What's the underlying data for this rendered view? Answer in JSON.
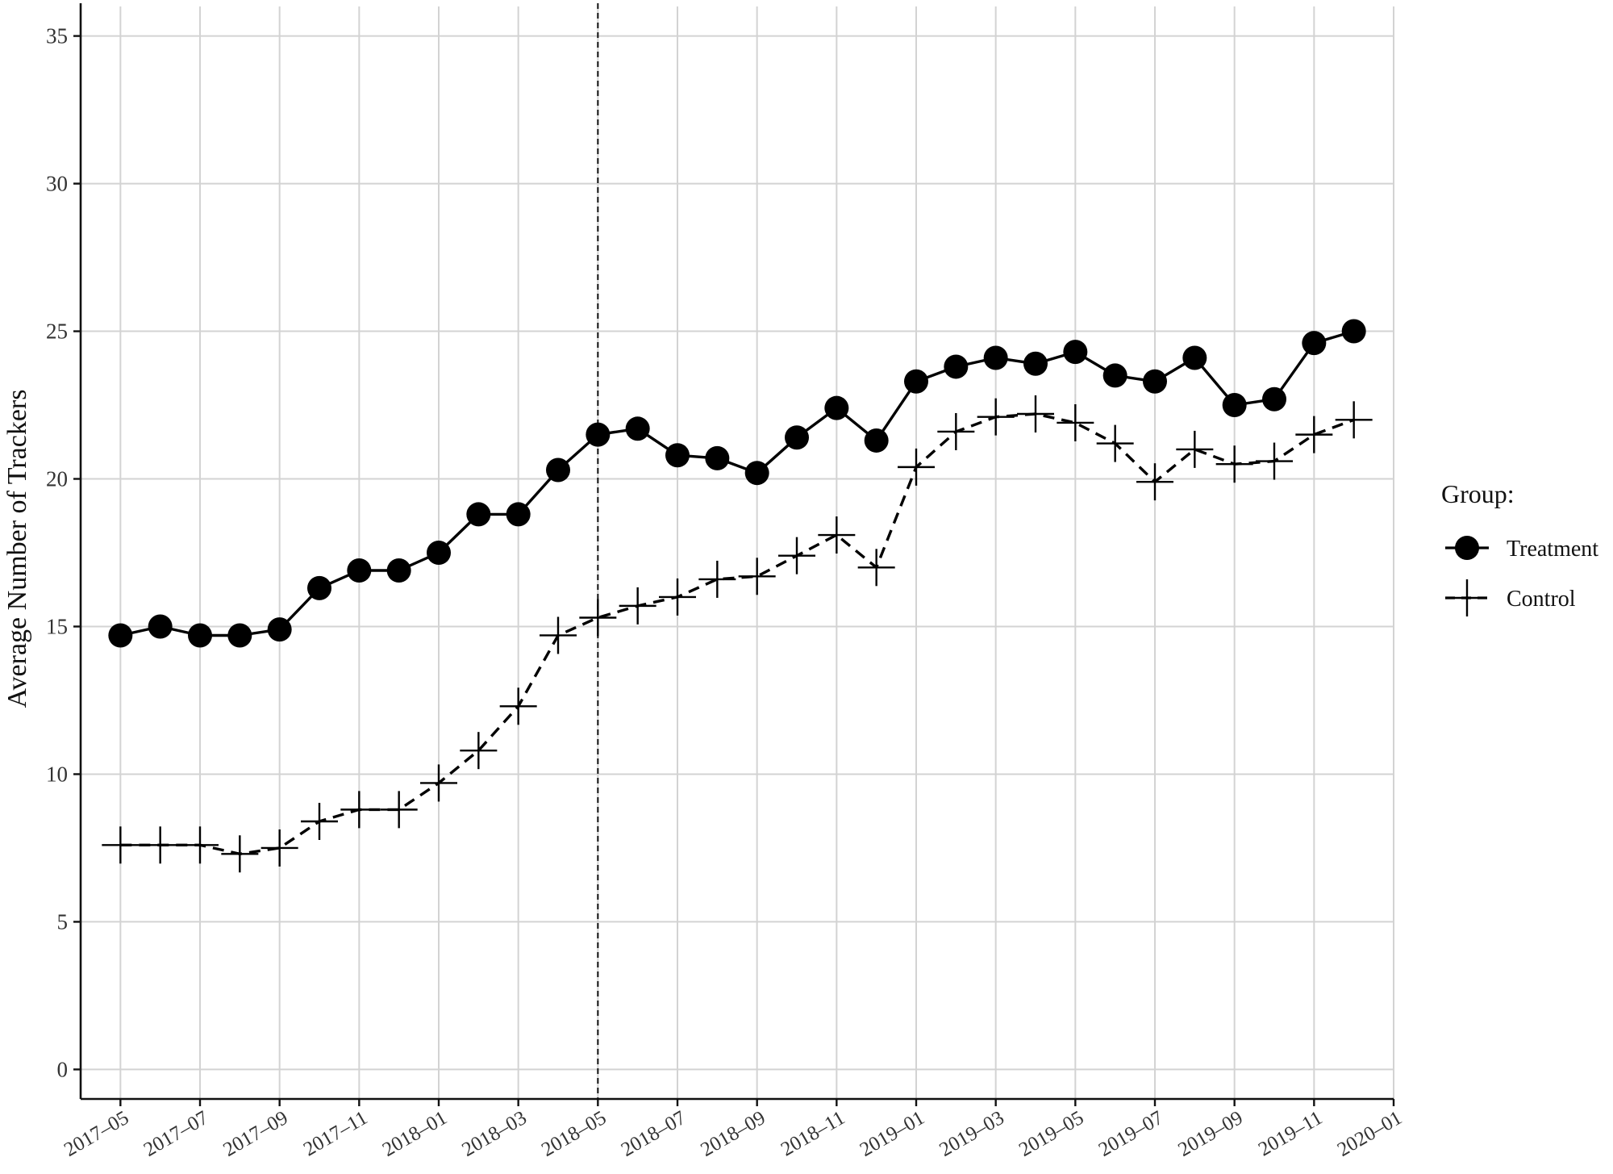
{
  "chart_data": {
    "type": "line",
    "title": "",
    "xlabel": "",
    "ylabel": "Average Number of Trackers",
    "ylim": [
      -1,
      36
    ],
    "yticks": [
      "0",
      "5",
      "10",
      "15",
      "20",
      "25",
      "30",
      "35"
    ],
    "xlim": [
      "2017-04",
      "2020-01"
    ],
    "xticks": [
      "2017-05",
      "2017-07",
      "2017-09",
      "2017-11",
      "2018-01",
      "2018-03",
      "2018-05",
      "2018-07",
      "2018-09",
      "2018-11",
      "2019-01",
      "2019-03",
      "2019-05",
      "2019-07",
      "2019-09",
      "2019-11",
      "2020-01"
    ],
    "xtick_labels": [
      "2017–05",
      "2017–07",
      "2017–09",
      "2017–11",
      "2018–01",
      "2018–03",
      "2018–05",
      "2018–07",
      "2018–09",
      "2018–11",
      "2019–01",
      "2019–03",
      "2019–05",
      "2019–07",
      "2019–09",
      "2019–11",
      "2020–01"
    ],
    "reference_line": {
      "x": "2018-05",
      "style": "dashed"
    },
    "grid": true,
    "legend": {
      "title": "Group:",
      "placement": "right"
    },
    "x": [
      "2017-05",
      "2017-06",
      "2017-07",
      "2017-08",
      "2017-09",
      "2017-10",
      "2017-11",
      "2017-12",
      "2018-01",
      "2018-02",
      "2018-03",
      "2018-04",
      "2018-05",
      "2018-06",
      "2018-07",
      "2018-08",
      "2018-09",
      "2018-10",
      "2018-11",
      "2018-12",
      "2019-01",
      "2019-02",
      "2019-03",
      "2019-04",
      "2019-05",
      "2019-06",
      "2019-07",
      "2019-08",
      "2019-09",
      "2019-10",
      "2019-11",
      "2019-12"
    ],
    "series": [
      {
        "name": "Treatment",
        "marker": "circle",
        "line": "solid",
        "values": [
          14.7,
          15.0,
          14.7,
          14.7,
          14.9,
          16.3,
          16.9,
          16.9,
          17.5,
          18.8,
          18.8,
          20.3,
          21.5,
          21.7,
          20.8,
          20.7,
          20.2,
          21.4,
          22.4,
          21.3,
          23.3,
          23.8,
          24.1,
          23.9,
          24.3,
          23.5,
          23.3,
          24.1,
          22.5,
          22.7,
          24.6,
          25.0
        ]
      },
      {
        "name": "Control",
        "marker": "plus",
        "line": "dashed",
        "values": [
          7.6,
          7.6,
          7.6,
          7.3,
          7.5,
          8.4,
          8.8,
          8.8,
          9.7,
          10.8,
          12.3,
          14.7,
          15.3,
          15.7,
          16.0,
          16.6,
          16.7,
          17.4,
          18.1,
          17.0,
          20.4,
          21.6,
          22.1,
          22.2,
          21.9,
          21.2,
          19.9,
          21.0,
          20.5,
          20.6,
          21.5,
          22.0
        ]
      }
    ]
  }
}
